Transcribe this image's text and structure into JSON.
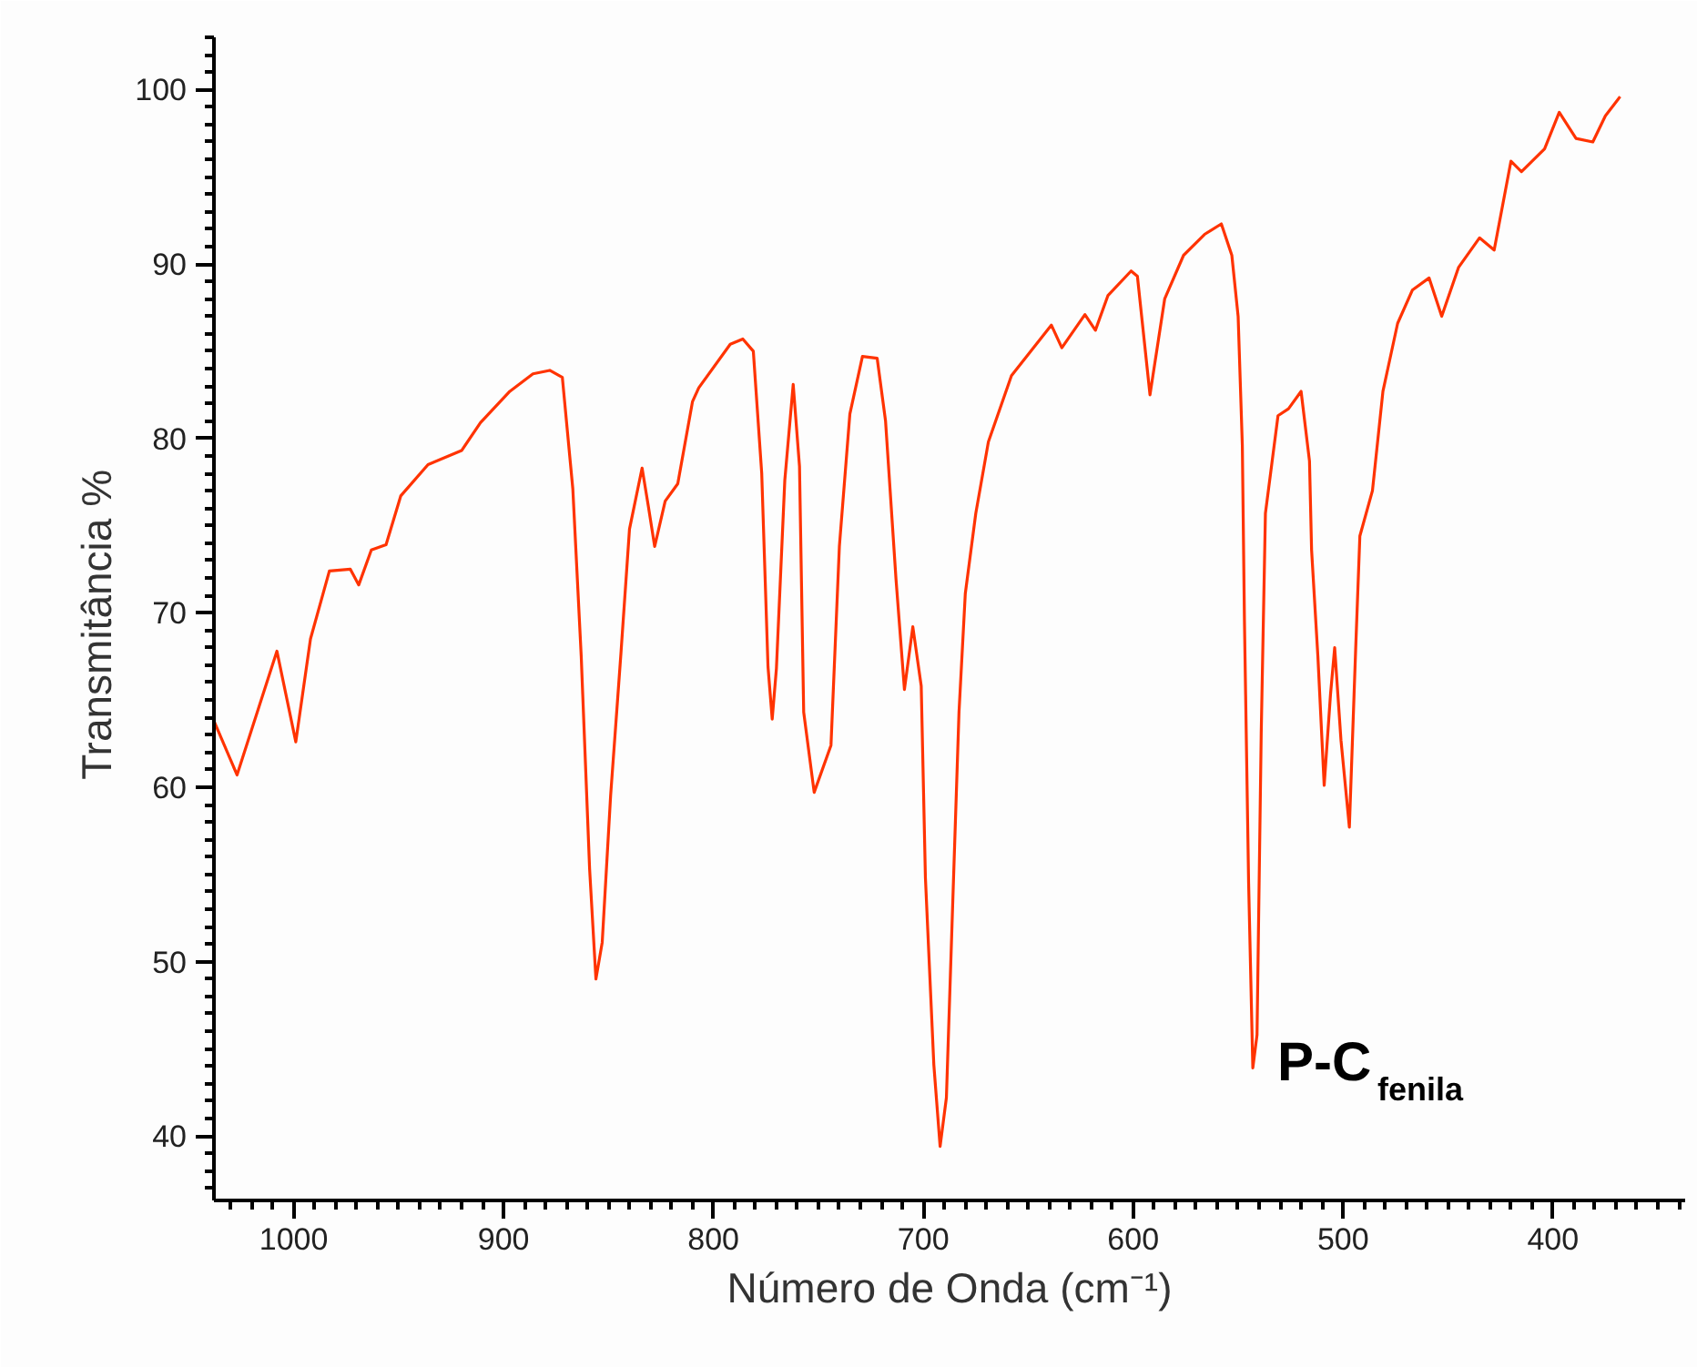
{
  "chart_data": {
    "type": "line",
    "xlabel": "Número de Onda (cm⁻¹)",
    "ylabel": "Transmitância  %",
    "xlim": [
      1038,
      337
    ],
    "ylim": [
      36.3,
      103
    ],
    "xticks": [
      1000,
      900,
      800,
      700,
      600,
      500,
      400
    ],
    "yticks": [
      40,
      50,
      60,
      70,
      80,
      90,
      100
    ],
    "grid": false,
    "marker": "none",
    "line_style": "solid",
    "series": [
      {
        "color": "#ff3300",
        "x": [
          1038,
          1027,
          1008,
          999,
          992,
          983,
          973,
          969,
          963,
          956,
          949,
          936,
          920,
          911,
          897,
          886,
          878,
          872,
          867,
          863,
          859,
          856,
          853,
          849,
          844,
          840,
          834,
          831,
          828,
          823,
          817,
          810,
          807,
          792,
          786,
          781,
          777,
          774,
          772,
          770,
          766,
          762,
          759,
          757,
          752,
          744,
          740,
          735,
          729,
          722,
          718,
          713,
          709,
          705,
          701,
          699,
          695,
          692,
          689,
          686,
          683,
          680,
          675,
          669,
          658,
          639,
          634,
          623,
          618,
          612,
          601,
          598,
          592,
          585,
          576,
          566,
          558,
          553,
          550,
          548,
          547,
          545,
          543,
          541,
          539,
          537,
          531,
          526,
          520,
          516,
          515,
          512,
          509,
          506,
          504,
          501,
          497,
          494,
          492,
          486,
          481,
          474,
          467,
          459,
          453,
          445,
          435,
          428,
          420,
          415,
          404,
          397,
          389,
          381,
          375,
          368
        ],
        "values": [
          63.8,
          60.7,
          67.8,
          62.6,
          68.5,
          72.4,
          72.5,
          71.6,
          73.6,
          73.9,
          76.7,
          78.5,
          79.3,
          80.9,
          82.7,
          83.7,
          83.9,
          83.5,
          77.1,
          67.5,
          55.3,
          49.0,
          51.1,
          59.5,
          67.8,
          74.8,
          78.3,
          76.1,
          73.8,
          76.4,
          77.4,
          82.1,
          82.9,
          85.4,
          85.7,
          85.0,
          78.0,
          66.9,
          63.9,
          66.8,
          77.6,
          83.1,
          78.4,
          64.3,
          59.7,
          62.4,
          73.8,
          81.4,
          84.7,
          84.6,
          81.0,
          71.9,
          65.6,
          69.2,
          65.8,
          54.8,
          44.1,
          39.4,
          42.2,
          53.3,
          64.3,
          71.1,
          75.7,
          79.8,
          83.6,
          86.5,
          85.2,
          87.1,
          86.2,
          88.2,
          89.6,
          89.3,
          82.5,
          88.0,
          90.5,
          91.7,
          92.3,
          90.5,
          87.0,
          79.6,
          69.6,
          54.5,
          43.9,
          45.8,
          63.1,
          75.7,
          81.3,
          81.7,
          82.7,
          78.7,
          73.6,
          67.5,
          60.1,
          65.3,
          68.0,
          62.7,
          57.7,
          67.9,
          74.4,
          77.0,
          82.7,
          86.6,
          88.5,
          89.2,
          87.0,
          89.8,
          91.5,
          90.8,
          95.9,
          95.3,
          96.6,
          98.7,
          97.2,
          97.0,
          98.5,
          99.6
        ]
      }
    ],
    "annotations": [
      "P-C$_{fenila}$"
    ]
  }
}
